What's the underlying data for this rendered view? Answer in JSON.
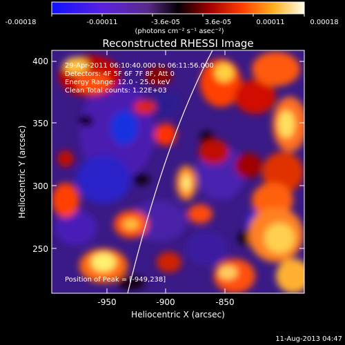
{
  "colorbar": {
    "tick_labels": [
      "-0.00018",
      "-0.00011",
      "-3.6e-05",
      "3.6e-05",
      "0.00011",
      "0.00018"
    ],
    "unit_label": "(photons cm⁻² s⁻¹ asec⁻²)"
  },
  "title": "Reconstructed RHESSI Image",
  "info": {
    "line1": "29-Apr-2011 06:10:40.000 to 06:11:56.000",
    "line2": "Detectors: 4F 5F 6F 7F 8F, Att 0",
    "line3": "Energy Range: 12.0 - 25.0 keV",
    "line4": "Clean     Total counts: 1.22E+03"
  },
  "peak_label": "Position of Peak = [-949,238]",
  "axes": {
    "xlabel": "Heliocentric X (arcsec)",
    "ylabel": "Heliocentric Y (arcsec)",
    "x_ticks": [
      "-950",
      "-900",
      "-850"
    ],
    "y_ticks": [
      "400",
      "350",
      "300",
      "250"
    ],
    "xlim": [
      -995,
      -805
    ],
    "ylim": [
      212,
      408
    ]
  },
  "timestamp": "11-Aug-2013 04:47"
}
